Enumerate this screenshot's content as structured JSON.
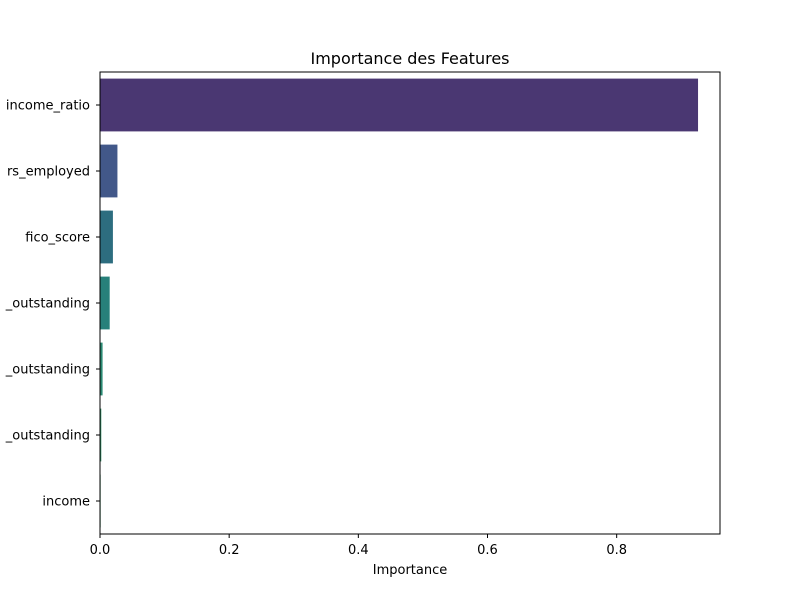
{
  "chart_data": {
    "type": "bar",
    "orientation": "horizontal",
    "title": "Importance des Features",
    "xlabel": "Importance",
    "ylabel": "",
    "xlim": [
      0,
      0.96
    ],
    "xticks": [
      0.0,
      0.2,
      0.4,
      0.6,
      0.8
    ],
    "xtick_labels": [
      "0.0",
      "0.2",
      "0.4",
      "0.6",
      "0.8"
    ],
    "categories": [
      "income_ratio",
      "rs_employed",
      "fico_score",
      "_outstanding",
      "_outstanding",
      "_outstanding",
      "income"
    ],
    "values": [
      0.926,
      0.027,
      0.02,
      0.015,
      0.004,
      0.002,
      0.001
    ],
    "colors": [
      "#4a3772",
      "#425889",
      "#2d6d7f",
      "#27807a",
      "#2c8b74",
      "#2f8c63",
      "#36935c"
    ],
    "grid": false,
    "legend": "none"
  }
}
